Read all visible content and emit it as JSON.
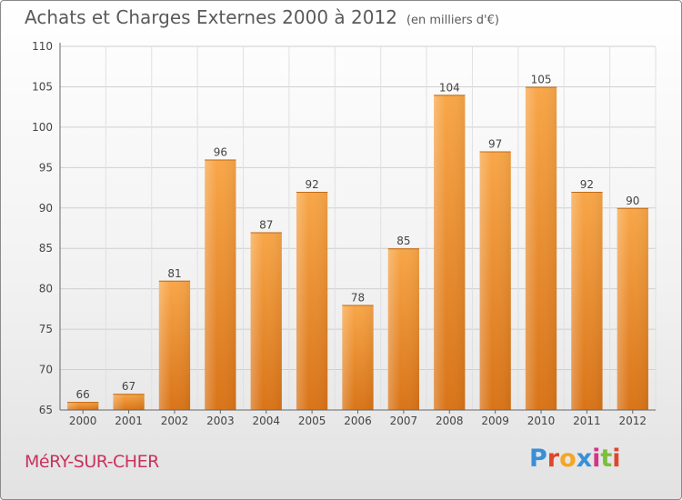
{
  "title": "Achats et Charges Externes 2000 à 2012",
  "subtitle": "(en milliers d'€)",
  "commune": "MéRY-SUR-CHER",
  "logo": {
    "text": "Proxiti",
    "colors": [
      "#3a8fd6",
      "#e0452b",
      "#f5a623",
      "#3a8fd6",
      "#d4338a",
      "#7bbf3a",
      "#e0452b"
    ]
  },
  "chart_data": {
    "type": "bar",
    "categories": [
      "2000",
      "2001",
      "2002",
      "2003",
      "2004",
      "2005",
      "2006",
      "2007",
      "2008",
      "2009",
      "2010",
      "2011",
      "2012"
    ],
    "values": [
      66,
      67,
      81,
      96,
      87,
      92,
      78,
      85,
      104,
      97,
      105,
      92,
      90
    ],
    "ylim": [
      65,
      110
    ],
    "yticks": [
      65,
      70,
      75,
      80,
      85,
      90,
      95,
      100,
      105,
      110
    ],
    "grid": true,
    "bar_color": "#f0952f"
  }
}
